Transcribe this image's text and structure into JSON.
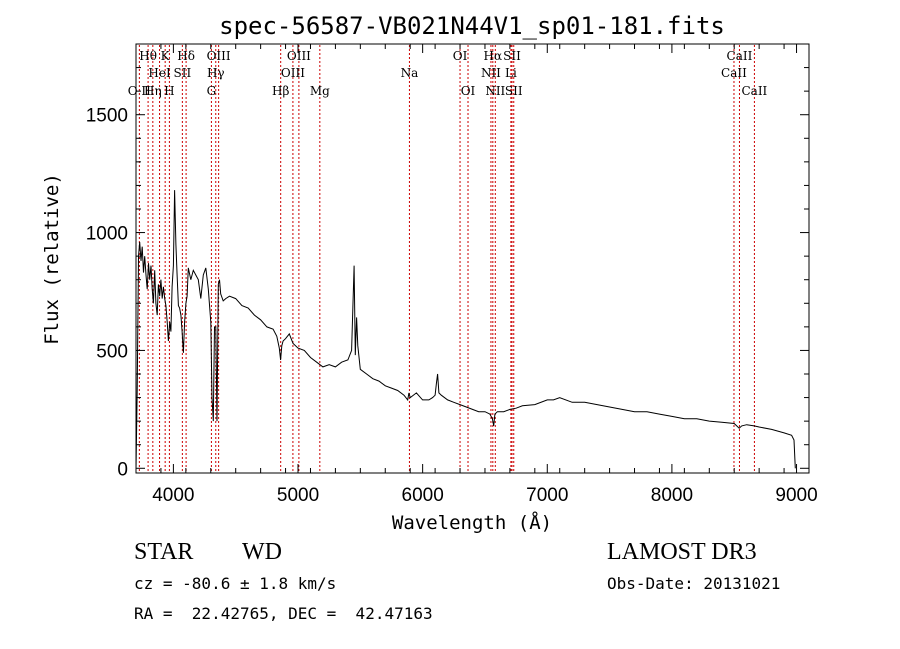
{
  "chart_data": {
    "type": "line",
    "title": "spec-56587-VB021N44V1_sp01-181.fits",
    "xlabel": "Wavelength (Å)",
    "ylabel": "Flux (relative)",
    "xlim": [
      3700,
      9100
    ],
    "ylim": [
      -20,
      1800
    ],
    "x_ticks": [
      4000,
      5000,
      6000,
      7000,
      8000,
      9000
    ],
    "y_ticks": [
      0,
      500,
      1000,
      1500
    ],
    "series": [
      {
        "name": "spectrum",
        "x": [
          3700,
          3710,
          3720,
          3730,
          3740,
          3750,
          3760,
          3770,
          3780,
          3790,
          3800,
          3810,
          3820,
          3830,
          3840,
          3850,
          3860,
          3870,
          3880,
          3890,
          3900,
          3910,
          3920,
          3930,
          3940,
          3950,
          3960,
          3970,
          3980,
          3990,
          4000,
          4010,
          4020,
          4030,
          4040,
          4050,
          4060,
          4070,
          4080,
          4090,
          4100,
          4110,
          4120,
          4140,
          4160,
          4180,
          4200,
          4220,
          4240,
          4260,
          4280,
          4300,
          4310,
          4320,
          4330,
          4340,
          4350,
          4360,
          4370,
          4380,
          4400,
          4420,
          4450,
          4500,
          4550,
          4600,
          4650,
          4700,
          4750,
          4800,
          4830,
          4850,
          4860,
          4870,
          4880,
          4900,
          4930,
          4960,
          5000,
          5050,
          5100,
          5150,
          5200,
          5250,
          5300,
          5350,
          5400,
          5430,
          5450,
          5460,
          5470,
          5480,
          5500,
          5550,
          5600,
          5650,
          5700,
          5750,
          5800,
          5850,
          5880,
          5890,
          5900,
          5950,
          6000,
          6050,
          6080,
          6100,
          6110,
          6120,
          6130,
          6150,
          6200,
          6250,
          6300,
          6350,
          6400,
          6450,
          6500,
          6540,
          6560,
          6570,
          6580,
          6600,
          6650,
          6700,
          6750,
          6800,
          6900,
          7000,
          7050,
          7100,
          7200,
          7300,
          7400,
          7500,
          7600,
          7700,
          7800,
          7900,
          8000,
          8100,
          8200,
          8300,
          8400,
          8500,
          8540,
          8560,
          8600,
          8660,
          8700,
          8800,
          8900,
          8960,
          8980,
          8990
        ],
        "values": [
          -10,
          330,
          900,
          960,
          880,
          940,
          830,
          900,
          820,
          760,
          870,
          800,
          860,
          760,
          700,
          840,
          700,
          650,
          780,
          730,
          800,
          720,
          770,
          720,
          690,
          620,
          540,
          620,
          580,
          770,
          860,
          1180,
          950,
          820,
          690,
          680,
          650,
          580,
          490,
          620,
          700,
          730,
          850,
          800,
          840,
          820,
          800,
          720,
          820,
          850,
          760,
          620,
          300,
          200,
          600,
          600,
          200,
          780,
          800,
          740,
          710,
          720,
          730,
          720,
          690,
          680,
          650,
          630,
          600,
          590,
          560,
          510,
          460,
          520,
          540,
          550,
          570,
          530,
          510,
          500,
          470,
          450,
          430,
          440,
          430,
          450,
          460,
          500,
          860,
          480,
          640,
          520,
          420,
          400,
          380,
          370,
          350,
          340,
          330,
          310,
          290,
          320,
          300,
          320,
          290,
          290,
          300,
          310,
          360,
          400,
          320,
          310,
          290,
          280,
          270,
          260,
          250,
          240,
          240,
          230,
          210,
          180,
          230,
          240,
          240,
          250,
          255,
          265,
          270,
          290,
          290,
          300,
          280,
          280,
          270,
          260,
          250,
          240,
          240,
          230,
          220,
          210,
          210,
          200,
          195,
          190,
          170,
          180,
          185,
          180,
          175,
          165,
          150,
          140,
          120,
          0
        ]
      }
    ],
    "line_markers": [
      {
        "label": "O II",
        "wavelength": 3727,
        "row": 2
      },
      {
        "label": "Hθ",
        "wavelength": 3797,
        "row": 0
      },
      {
        "label": "Hη",
        "wavelength": 3835,
        "row": 2
      },
      {
        "label": "HeI",
        "wavelength": 3889,
        "row": 1
      },
      {
        "label": "K",
        "wavelength": 3934,
        "row": 0
      },
      {
        "label": "H",
        "wavelength": 3968,
        "row": 2
      },
      {
        "label": "SII",
        "wavelength": 4072,
        "row": 1
      },
      {
        "label": "Hδ",
        "wavelength": 4102,
        "row": 0
      },
      {
        "label": "G",
        "wavelength": 4305,
        "row": 2
      },
      {
        "label": "Hγ",
        "wavelength": 4340,
        "row": 1
      },
      {
        "label": "OIII",
        "wavelength": 4363,
        "row": 0
      },
      {
        "label": "Hβ",
        "wavelength": 4861,
        "row": 2
      },
      {
        "label": "OIII",
        "wavelength": 4959,
        "row": 1
      },
      {
        "label": "OIII",
        "wavelength": 5007,
        "row": 0
      },
      {
        "label": "Mg",
        "wavelength": 5175,
        "row": 2
      },
      {
        "label": "Na",
        "wavelength": 5894,
        "row": 1
      },
      {
        "label": "OI",
        "wavelength": 6300,
        "row": 0
      },
      {
        "label": "OI",
        "wavelength": 6364,
        "row": 2
      },
      {
        "label": "NII",
        "wavelength": 6548,
        "row": 1
      },
      {
        "label": "Hα",
        "wavelength": 6563,
        "row": 0
      },
      {
        "label": "NII",
        "wavelength": 6583,
        "row": 2
      },
      {
        "label": "Li",
        "wavelength": 6708,
        "row": 1
      },
      {
        "label": "SII",
        "wavelength": 6717,
        "row": 0
      },
      {
        "label": "SII",
        "wavelength": 6731,
        "row": 2
      },
      {
        "label": "CaII",
        "wavelength": 8498,
        "row": 1
      },
      {
        "label": "CaII",
        "wavelength": 8542,
        "row": 0
      },
      {
        "label": "CaII",
        "wavelength": 8662,
        "row": 2
      }
    ]
  },
  "info": {
    "class": "STAR",
    "subclass": "WD",
    "survey": "LAMOST DR3",
    "redshift": "cz = -80.6 ± 1.8 km/s",
    "obs_date": "Obs-Date: 20131021",
    "coords": "RA =  22.42765, DEC =  42.47163"
  }
}
